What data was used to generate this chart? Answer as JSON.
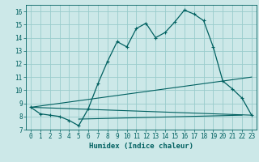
{
  "title": "",
  "xlabel": "Humidex (Indice chaleur)",
  "ylabel": "",
  "bg_color": "#cce8e8",
  "grid_color": "#99cccc",
  "line_color": "#006060",
  "xlim": [
    -0.5,
    23.5
  ],
  "ylim": [
    7,
    16.5
  ],
  "xticks": [
    0,
    1,
    2,
    3,
    4,
    5,
    6,
    7,
    8,
    9,
    10,
    11,
    12,
    13,
    14,
    15,
    16,
    17,
    18,
    19,
    20,
    21,
    22,
    23
  ],
  "yticks": [
    7,
    8,
    9,
    10,
    11,
    12,
    13,
    14,
    15,
    16
  ],
  "main_curve_x": [
    0,
    1,
    2,
    3,
    4,
    5,
    6,
    7,
    8,
    9,
    10,
    11,
    12,
    13,
    14,
    15,
    16,
    17,
    18,
    19,
    20,
    21,
    22,
    23
  ],
  "main_curve_y": [
    8.7,
    8.2,
    8.1,
    8.0,
    7.7,
    7.3,
    8.6,
    10.5,
    12.2,
    13.7,
    13.3,
    14.7,
    15.1,
    14.0,
    14.4,
    15.2,
    16.1,
    15.8,
    15.3,
    13.3,
    10.7,
    10.1,
    9.4,
    8.1
  ],
  "line2_x": [
    0,
    23
  ],
  "line2_y": [
    8.7,
    8.1
  ],
  "line3_x": [
    0,
    23
  ],
  "line3_y": [
    8.7,
    11.0
  ],
  "line4_x": [
    5,
    22
  ],
  "line4_y": [
    7.8,
    8.1
  ],
  "xlabel_fontsize": 6.5,
  "tick_fontsize": 5.5
}
